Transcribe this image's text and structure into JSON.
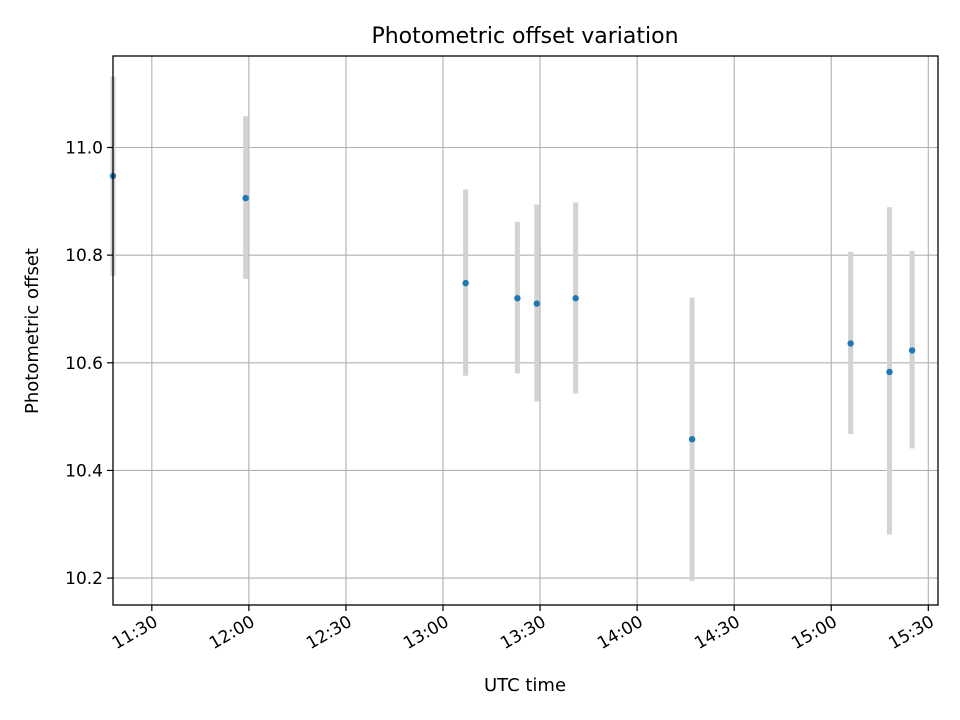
{
  "chart_data": {
    "type": "scatter",
    "title": "Photometric offset variation",
    "xlabel": "UTC time",
    "ylabel": "Photometric offset",
    "x_ticks": [
      "11:30",
      "12:00",
      "12:30",
      "13:00",
      "13:30",
      "14:00",
      "14:30",
      "15:00",
      "15:30"
    ],
    "y_ticks": [
      "10.2",
      "10.4",
      "10.6",
      "10.8",
      "11.0"
    ],
    "xlim": [
      "11:18",
      "15:33"
    ],
    "ylim": [
      10.15,
      11.17
    ],
    "grid": true,
    "point_color": "#1f77b4",
    "errorbar_color": "#d3d3d3",
    "series": [
      {
        "points": [
          {
            "x": "11:18",
            "y": 10.947,
            "low": 10.762,
            "high": 11.132
          },
          {
            "x": "11:59",
            "y": 10.906,
            "low": 10.756,
            "high": 11.058
          },
          {
            "x": "13:07",
            "y": 10.748,
            "low": 10.576,
            "high": 10.922
          },
          {
            "x": "13:23",
            "y": 10.72,
            "low": 10.58,
            "high": 10.862
          },
          {
            "x": "13:29",
            "y": 10.71,
            "low": 10.528,
            "high": 10.894
          },
          {
            "x": "13:41",
            "y": 10.72,
            "low": 10.543,
            "high": 10.898
          },
          {
            "x": "14:17",
            "y": 10.458,
            "low": 10.195,
            "high": 10.721
          },
          {
            "x": "15:06",
            "y": 10.636,
            "low": 10.468,
            "high": 10.806
          },
          {
            "x": "15:18",
            "y": 10.583,
            "low": 10.281,
            "high": 10.889
          },
          {
            "x": "15:25",
            "y": 10.623,
            "low": 10.441,
            "high": 10.808
          }
        ]
      }
    ]
  }
}
